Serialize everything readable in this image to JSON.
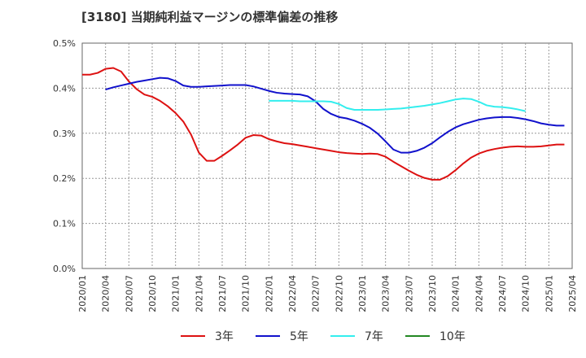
{
  "chart_data": {
    "type": "line",
    "title": "[3180]  当期純利益マージンの標準偏差の推移",
    "xlabel": "",
    "ylabel": "",
    "ylim": [
      0,
      0.5
    ],
    "y_ticks": [
      "0.0%",
      "0.1%",
      "0.2%",
      "0.3%",
      "0.4%",
      "0.5%"
    ],
    "x_ticks": [
      "2020/01",
      "2020/04",
      "2020/07",
      "2020/10",
      "2021/01",
      "2021/04",
      "2021/07",
      "2021/10",
      "2022/01",
      "2022/04",
      "2022/07",
      "2022/10",
      "2023/01",
      "2023/04",
      "2023/07",
      "2023/10",
      "2024/01",
      "2024/04",
      "2024/07",
      "2024/10",
      "2025/01",
      "2025/04"
    ],
    "x_start": "2020/01",
    "grid": true,
    "legend_position": "bottom",
    "series": [
      {
        "name": "3年",
        "color": "#dd1111",
        "start": "2020/01",
        "values": [
          0.43,
          0.43,
          0.434,
          0.443,
          0.445,
          0.437,
          0.415,
          0.398,
          0.386,
          0.381,
          0.372,
          0.36,
          0.345,
          0.326,
          0.297,
          0.257,
          0.239,
          0.239,
          0.25,
          0.262,
          0.275,
          0.29,
          0.296,
          0.295,
          0.287,
          0.282,
          0.278,
          0.276,
          0.273,
          0.27,
          0.267,
          0.264,
          0.261,
          0.258,
          0.256,
          0.255,
          0.254,
          0.255,
          0.254,
          0.248,
          0.237,
          0.227,
          0.217,
          0.208,
          0.201,
          0.197,
          0.197,
          0.205,
          0.218,
          0.233,
          0.246,
          0.255,
          0.261,
          0.265,
          0.268,
          0.27,
          0.271,
          0.27,
          0.27,
          0.271,
          0.273,
          0.275,
          0.275
        ]
      },
      {
        "name": "5年",
        "color": "#1111cc",
        "start": "2020/04",
        "values": [
          0.397,
          0.402,
          0.406,
          0.41,
          0.414,
          0.417,
          0.42,
          0.423,
          0.422,
          0.416,
          0.406,
          0.403,
          0.403,
          0.404,
          0.405,
          0.406,
          0.407,
          0.407,
          0.407,
          0.404,
          0.399,
          0.394,
          0.39,
          0.388,
          0.387,
          0.386,
          0.382,
          0.371,
          0.354,
          0.343,
          0.336,
          0.333,
          0.328,
          0.321,
          0.312,
          0.299,
          0.282,
          0.264,
          0.257,
          0.257,
          0.261,
          0.268,
          0.278,
          0.291,
          0.303,
          0.313,
          0.32,
          0.325,
          0.33,
          0.333,
          0.335,
          0.336,
          0.336,
          0.334,
          0.331,
          0.327,
          0.322,
          0.319,
          0.317,
          0.317
        ]
      },
      {
        "name": "7年",
        "color": "#33eeee",
        "start": "2022/01",
        "values": [
          0.372,
          0.372,
          0.372,
          0.372,
          0.371,
          0.371,
          0.371,
          0.371,
          0.37,
          0.365,
          0.356,
          0.352,
          0.352,
          0.352,
          0.352,
          0.353,
          0.354,
          0.355,
          0.357,
          0.359,
          0.361,
          0.364,
          0.367,
          0.371,
          0.375,
          0.377,
          0.376,
          0.37,
          0.362,
          0.359,
          0.358,
          0.356,
          0.353,
          0.349
        ]
      },
      {
        "name": "10年",
        "color": "#228822",
        "start": "2025/01",
        "values": []
      }
    ]
  }
}
